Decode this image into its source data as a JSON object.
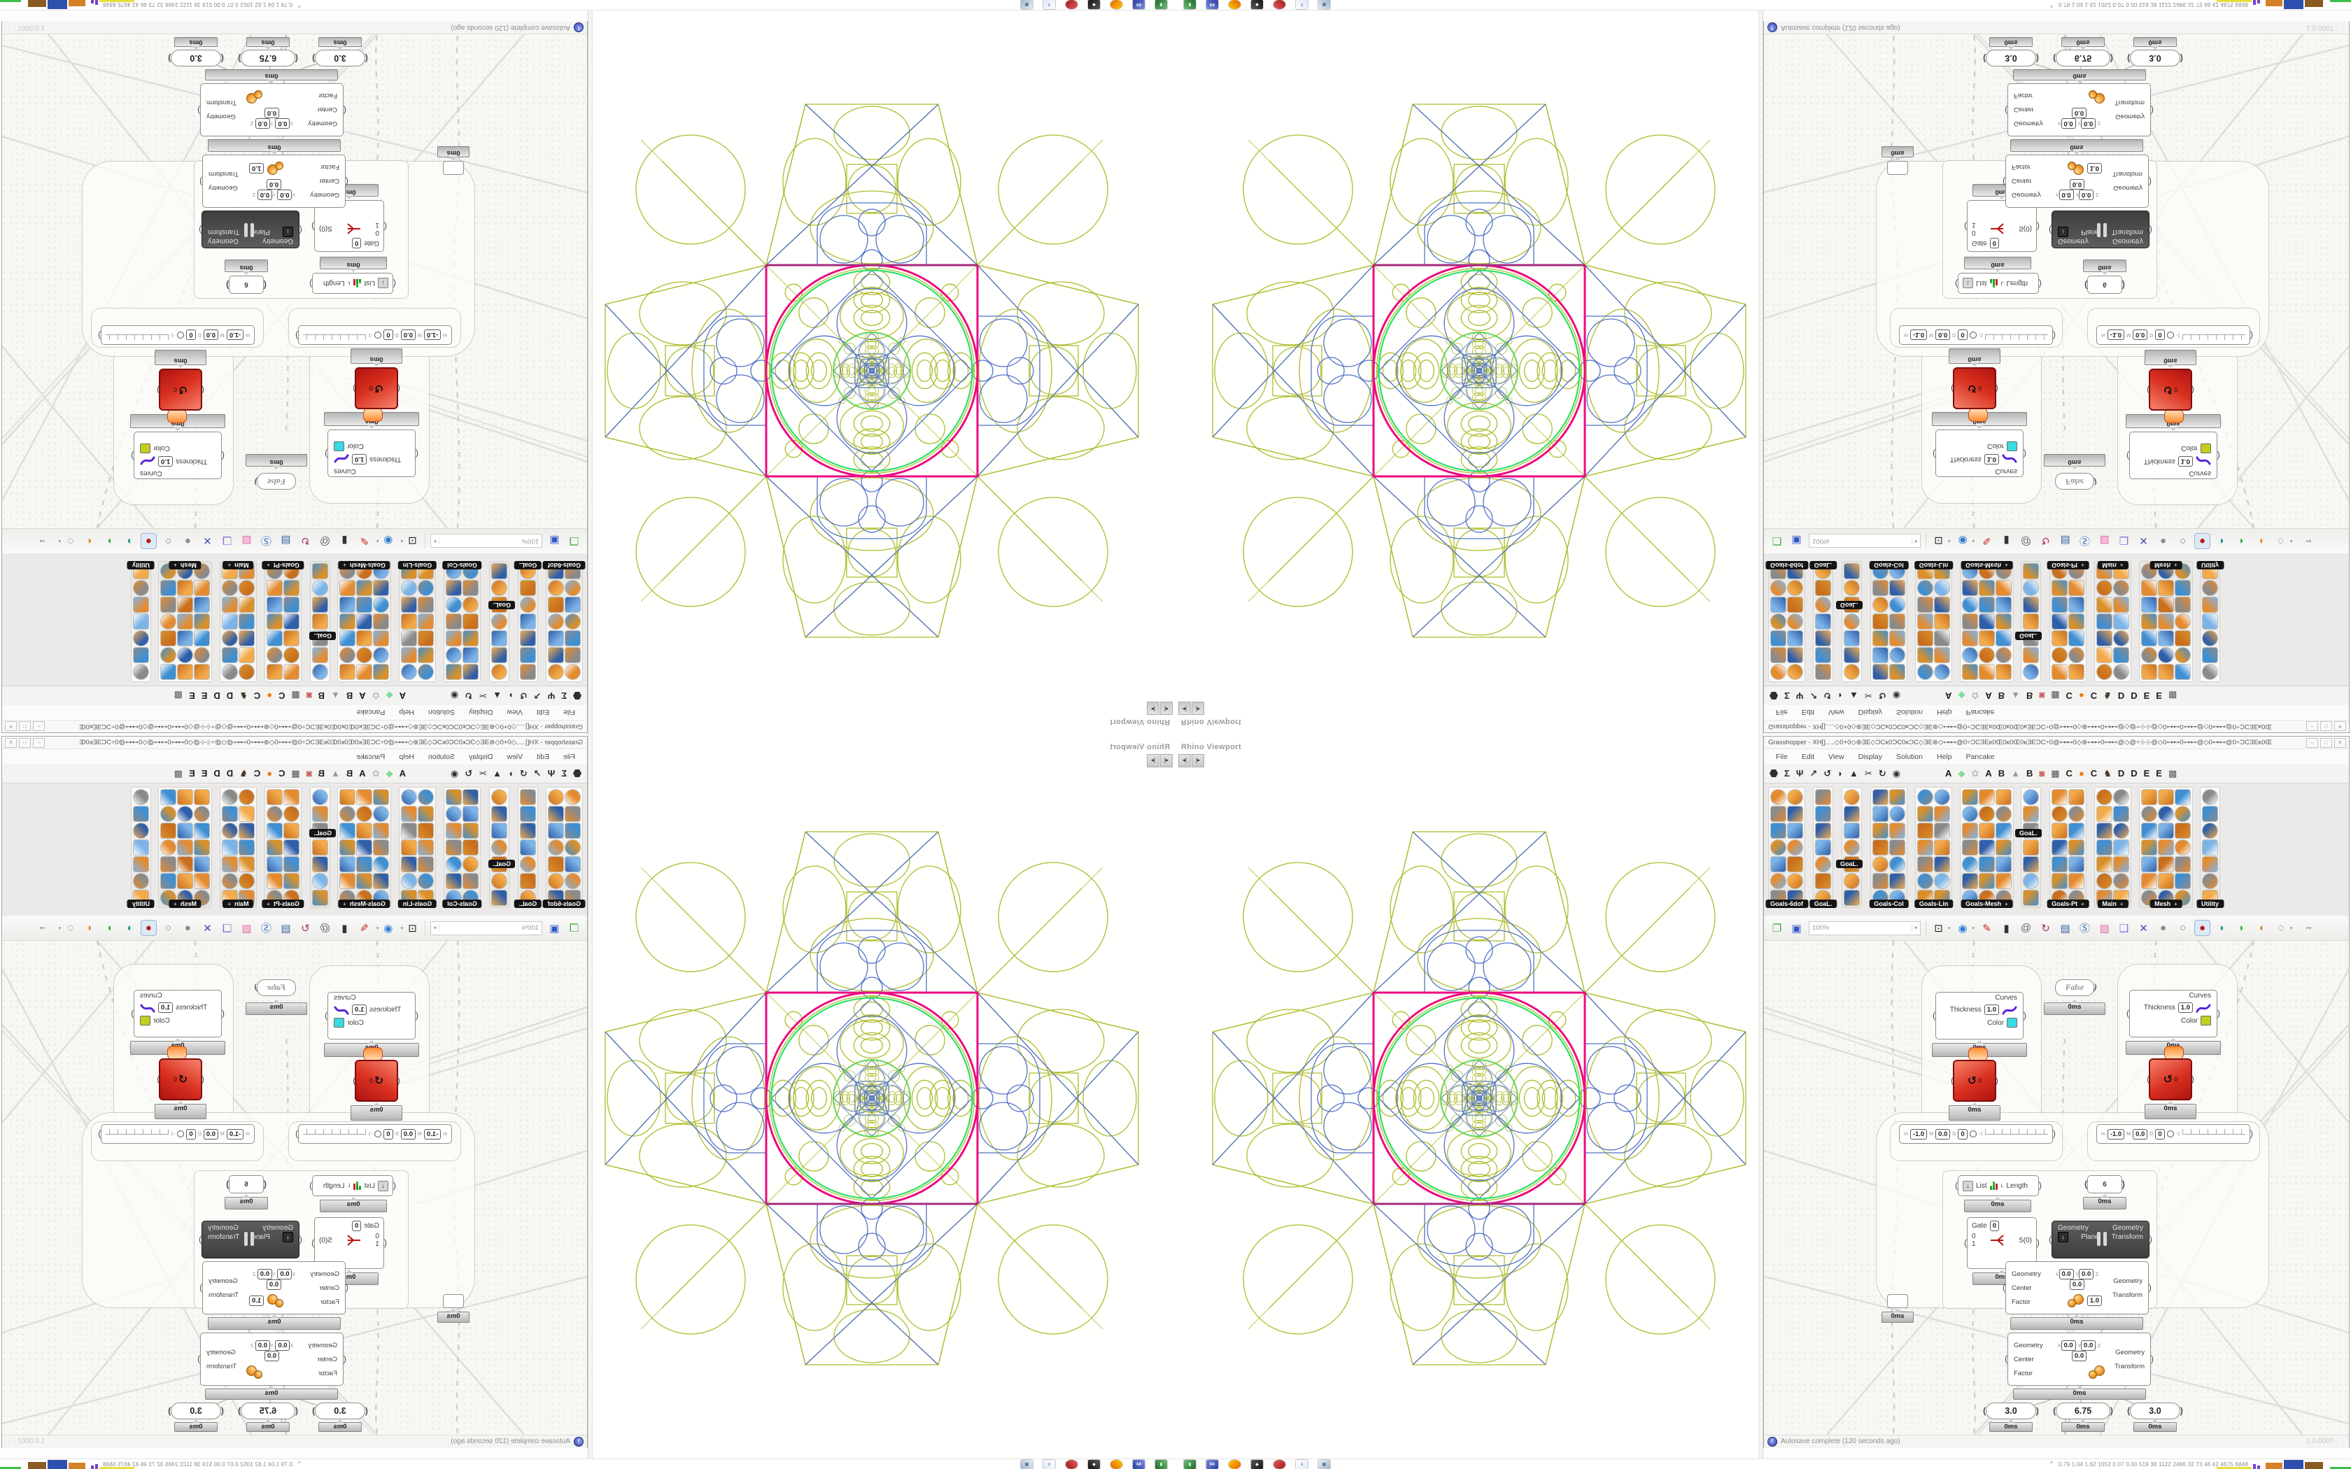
{
  "shot": {
    "viewport": {
      "label": "Rhino Viewport",
      "btn_left": "◂|",
      "btn_right": "|▸"
    },
    "pattern": {
      "olive": "#aebc2a",
      "blue": "#5273c6",
      "magenta": "#ee0a80",
      "magenta_dark": "#a62a7d",
      "green": "#2ee06a",
      "bg": "#ffffff"
    },
    "gh": {
      "title": "Grasshopper - XH[].....◇0+0◇⊛ƎE◇ƆCĸ0ƆC0ĸƆC◇ƎE⊛◇⊶⊷@0÷ƆCƎEĸ0Œ0ĸ0Œ0ĸƎEƆC÷0@⊶⊷0◇⊛⊶⊷0⊶⊷@◇@÷⊹⊹@◇0⊶⊷0⊶⊷@◇0⊶⊷@0÷ƆCƎEĸ0Œ0ĸ0...",
      "window_buttons": {
        "min": "–",
        "max": "□",
        "close": "✕"
      },
      "menu": {
        "items": [
          "File",
          "Edit",
          "View",
          "Display",
          "Solution",
          "Help",
          "Pancake"
        ]
      },
      "tabs": {
        "glyphs": [
          {
            "name": "tab-params",
            "glyph": "hex"
          },
          {
            "name": "tab-maths",
            "glyph": "Σ"
          },
          {
            "name": "tab-sets",
            "glyph": "Ψ"
          },
          {
            "name": "tab-vector",
            "glyph": "↗"
          },
          {
            "name": "tab-curve",
            "glyph": "↺"
          },
          {
            "name": "tab-surface",
            "glyph": "◗"
          },
          {
            "name": "tab-mesh",
            "glyph": "▲"
          },
          {
            "name": "tab-intersect",
            "glyph": "✂"
          },
          {
            "name": "tab-transform",
            "glyph": "↻"
          },
          {
            "name": "tab-display",
            "glyph": "◉"
          }
        ],
        "plugins": [
          {
            "kind": "letter",
            "label": "A"
          },
          {
            "kind": "icon",
            "name": "gem-icon",
            "glyph": "◆",
            "color": "#7fdc9a"
          },
          {
            "kind": "icon",
            "name": "flower-icon",
            "glyph": "✿",
            "color": "#bcbcbc"
          },
          {
            "kind": "letter",
            "label": "A"
          },
          {
            "kind": "letter",
            "label": "B"
          },
          {
            "kind": "icon",
            "name": "mountain-icon",
            "glyph": "▲",
            "color": "#9a9a9a"
          },
          {
            "kind": "letter",
            "label": "B"
          },
          {
            "kind": "icon",
            "name": "shield-icon",
            "glyph": "◙",
            "color": "#c05555"
          },
          {
            "kind": "icon",
            "name": "waffle-icon",
            "glyph": "▦",
            "color": "#4a4a4a"
          },
          {
            "kind": "letter",
            "label": "C"
          },
          {
            "kind": "icon",
            "name": "orange-dot-icon",
            "glyph": "●",
            "color": "#f07a14"
          },
          {
            "kind": "letter",
            "label": "C"
          },
          {
            "kind": "icon",
            "name": "bird-icon",
            "glyph": "♞",
            "color": "#42301e"
          },
          {
            "kind": "letter",
            "label": "D"
          },
          {
            "kind": "letter",
            "label": "D"
          },
          {
            "kind": "letter",
            "label": "E"
          },
          {
            "kind": "letter",
            "label": "E"
          },
          {
            "kind": "icon",
            "name": "checker-icon",
            "glyph": "▩",
            "color": "#5a5a5a"
          }
        ]
      },
      "ribbon": {
        "panels": [
          {
            "label": "Goals-6dof",
            "cols": 2,
            "arrow": false,
            "float": ""
          },
          {
            "label": "GoaL.",
            "cols": 1,
            "arrow": false,
            "float": ""
          },
          {
            "label": "",
            "cols": 1,
            "arrow": false,
            "float": "GoaL."
          },
          {
            "label": "Goals-Col",
            "cols": 2,
            "arrow": false,
            "float": ""
          },
          {
            "label": "Goals-Lin",
            "cols": 2,
            "arrow": false,
            "float": ""
          },
          {
            "label": "Goals-Mesh",
            "cols": 3,
            "arrow": true,
            "float": ""
          },
          {
            "label": "",
            "cols": 1,
            "arrow": false,
            "float": "GoaL."
          },
          {
            "label": "Goals-Pt",
            "cols": 2,
            "arrow": true,
            "float": ""
          },
          {
            "label": "Main",
            "cols": 2,
            "arrow": true,
            "float": ""
          },
          {
            "label": "Mesh",
            "cols": 3,
            "arrow": true,
            "float": ""
          },
          {
            "label": "Utility",
            "cols": 1,
            "arrow": false,
            "float": ""
          }
        ]
      },
      "toolbar": {
        "zoom": "100%",
        "icons": [
          {
            "name": "open-file-icon",
            "glyph": "❐",
            "color": "#3fae3f"
          },
          {
            "name": "save-file-icon",
            "glyph": "▣",
            "color": "#2f54c9"
          },
          {
            "name": "zoom-extents-icon",
            "glyph": "⊡",
            "color": "#222222",
            "drop": true
          },
          {
            "name": "preview-eye-icon",
            "glyph": "◉",
            "color": "#2e7fd0",
            "drop": true
          },
          {
            "name": "sketch-pen-icon",
            "glyph": "✎",
            "color": "#c92222"
          },
          {
            "name": "camera-icon",
            "glyph": "▮",
            "color": "#333333"
          },
          {
            "name": "remote-panel-icon",
            "glyph": "@",
            "color": "#666666"
          },
          {
            "name": "gha-loader-icon",
            "glyph": "↻",
            "color": "#b03060"
          },
          {
            "name": "publish-icon",
            "glyph": "▤",
            "color": "#355f9e"
          },
          {
            "name": "find-icon",
            "glyph": "Ⓢ",
            "color": "#2d6fc4"
          },
          {
            "name": "mystery-box-icon",
            "glyph": "▨",
            "color": "#e868a8"
          },
          {
            "name": "hint-balloon-icon",
            "glyph": "❑",
            "color": "#8a6ad8"
          },
          {
            "name": "wire-display-icon",
            "glyph": "✕",
            "color": "#3f4fb0"
          },
          {
            "name": "bake-gray-icon",
            "glyph": "●",
            "color": "#8b8b8b"
          },
          {
            "name": "bake-wire-icon",
            "glyph": "○",
            "color": "#777777"
          },
          {
            "name": "bake-red-icon",
            "glyph": "●",
            "color": "#bb1a1a",
            "selected": true
          },
          {
            "name": "bean-teal-icon",
            "glyph": "◗",
            "color": "#1a9a9a"
          },
          {
            "name": "bean-green-icon",
            "glyph": "◗",
            "color": "#3fae3f"
          },
          {
            "name": "sphere-orange-icon",
            "glyph": "◖",
            "color": "#e08a20"
          },
          {
            "name": "selection-lasso-icon",
            "glyph": "◌",
            "color": "#666666",
            "drop": true
          }
        ]
      },
      "canvas": {
        "profiler": "0ms",
        "toggle": {
          "value": "False"
        },
        "curves_left": {
          "title": "Curves",
          "thickness_label": "Thickness",
          "thickness": "1.0",
          "color_label": "Color",
          "swatch": "#35dce2"
        },
        "curves_right": {
          "title": "Curves",
          "thickness_label": "Thickness",
          "thickness": "1.0",
          "color_label": "Color",
          "swatch": "#c3cf1f"
        },
        "red_badge": "0",
        "red_glyph": "↺",
        "domain_slider": {
          "m_label": "m",
          "m": "-1.0",
          "M_label": "M",
          "M": "0.0",
          "D_label": "D",
          "D": "0",
          "tick": "-1"
        },
        "list_length": {
          "in_label": "List",
          "bars_sub": "L",
          "out_label": "Length",
          "drop": "↓"
        },
        "panel_six": "6",
        "gate": {
          "label": "Gate",
          "value": "0",
          "in0": "0",
          "in1": "1",
          "out": "S(0)"
        },
        "pause": {
          "in1": "Geometry",
          "in2": "Plane",
          "out1": "Geometry",
          "out2": "Transform",
          "drop": "↓"
        },
        "scale1": {
          "in1": "Geometry",
          "in2": "Center",
          "x": "X",
          "xv": "0.0",
          "y": "Y",
          "yv": "0.0",
          "z": "Z",
          "zv": "0.0",
          "in3": "Factor",
          "fv": "1.0",
          "out1": "Geometry",
          "out2": "Transform"
        },
        "scale2": {
          "in1": "Geometry",
          "in2": "Center",
          "x": "X",
          "xv": "0.0",
          "y": "Y",
          "yv": "0.0",
          "z": "Z",
          "zv": "0.0",
          "in3": "Factor",
          "out1": "Geometry",
          "out2": "Transform"
        },
        "sliders": [
          "3.0",
          "6.75",
          "3.0"
        ]
      },
      "status": {
        "icon": "!",
        "text": "Autosave complete (120 seconds ago)",
        "version": "1.0.0007"
      }
    },
    "taskbar": {
      "apps": [
        {
          "name": "floppy-green-icon",
          "c1": "#1d6b2a",
          "c2": "#6dbf78",
          "glyph": "▮"
        },
        {
          "name": "floppy-blue-64-icon",
          "c1": "#2c3e9e",
          "c2": "#7a8fe0",
          "glyph": "64"
        },
        {
          "name": "firefox-icon",
          "c1": "#e66000",
          "c2": "#ffcb00",
          "glyph": "",
          "round": true
        },
        {
          "name": "inkscape-icon",
          "c1": "#141414",
          "c2": "#585858",
          "glyph": "◆"
        },
        {
          "name": "red-ornament-icon",
          "c1": "#a31515",
          "c2": "#e06060",
          "glyph": "",
          "round": true
        },
        {
          "name": "notepad-icon",
          "c1": "#dce8f8",
          "c2": "#ffffff",
          "glyph": "≡",
          "dark": true
        },
        {
          "name": "calculator-icon",
          "c1": "#9fb6cf",
          "c2": "#e8eef5",
          "glyph": "▦",
          "dark": true
        }
      ],
      "tray": {
        "expander": "^",
        "numbers": "0.79 1.04 1.62 1052 0.07 0.00 519  38  1122 2486  32   73   46   42  4675 6848",
        "graph": [
          {
            "c": "#e6e03a",
            "w": 50,
            "h": 3,
            "gap": 2
          },
          {
            "c": "#7a3fd0",
            "w": 4,
            "h": 7,
            "gap": 2
          },
          {
            "c": "#7a3fd0",
            "w": 4,
            "h": 5,
            "gap": 8
          },
          {
            "c": "#d58127",
            "w": 24,
            "h": 9,
            "gap": 2
          },
          {
            "c": "#2d4fae",
            "w": 28,
            "h": 13,
            "gap": 2
          },
          {
            "c": "#8a5a22",
            "w": 26,
            "h": 10,
            "gap": 10
          },
          {
            "c": "#3bbf4a",
            "w": 34,
            "h": 3,
            "gap": 4
          },
          {
            "c": "#8e1616",
            "w": 22,
            "h": 13,
            "gap": 0
          }
        ]
      }
    }
  }
}
